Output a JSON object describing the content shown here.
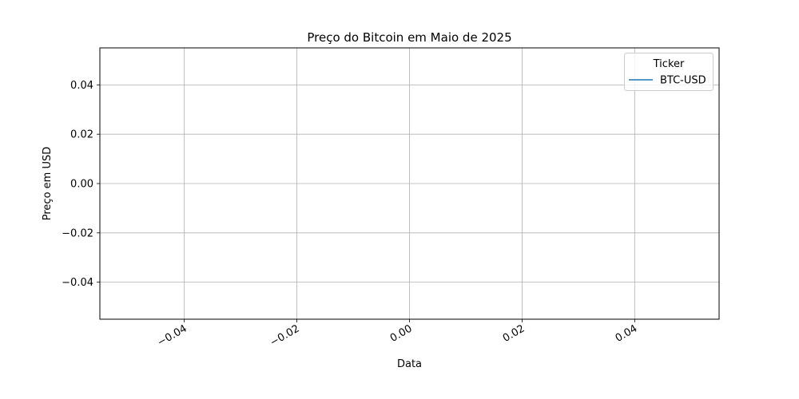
{
  "chart_data": {
    "type": "line",
    "title": "Preço do Bitcoin em Maio de 2025",
    "xlabel": "Data",
    "ylabel": "Preço em USD",
    "xlim": [
      -0.055,
      0.055
    ],
    "ylim": [
      -0.055,
      0.055
    ],
    "x_ticks": [
      -0.04,
      -0.02,
      0.0,
      0.02,
      0.04
    ],
    "x_tick_labels": [
      "−0.04",
      "−0.02",
      "0.00",
      "0.02",
      "0.04"
    ],
    "y_ticks": [
      0.04,
      0.02,
      0.0,
      -0.02,
      -0.04
    ],
    "y_tick_labels": [
      "0.04",
      "0.02",
      "0.00",
      "−0.02",
      "−0.04"
    ],
    "grid": true,
    "legend": {
      "title": "Ticker",
      "placement": "top-right",
      "entries": [
        {
          "name": "BTC-USD",
          "color": "#1f77b4"
        }
      ]
    },
    "series": [
      {
        "name": "BTC-USD",
        "color": "#1f77b4",
        "x": [],
        "y": []
      }
    ]
  }
}
